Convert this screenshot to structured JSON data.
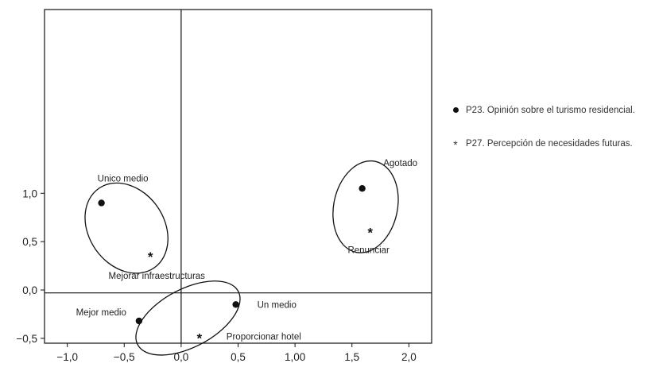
{
  "chart_data": {
    "type": "scatter",
    "title": "",
    "xlabel": "",
    "ylabel": "",
    "xlim": [
      -1.2,
      2.2
    ],
    "ylim": [
      -0.55,
      2.9
    ],
    "xticks": [
      -1.0,
      -0.5,
      0.0,
      0.5,
      1.0,
      1.5,
      2.0
    ],
    "xtick_labels": [
      "−1,0",
      "−0,5",
      "0,0",
      "0,5",
      "1,00",
      "1,5",
      "2,0"
    ],
    "yticks": [
      -0.5,
      0.0,
      0.5,
      1.0
    ],
    "ytick_labels": [
      "−0,5",
      "0,0",
      "0,5",
      "1,0"
    ],
    "reference_lines": {
      "x": 0.0,
      "y": -0.03
    },
    "grid": false,
    "series": [
      {
        "name": "P23. Opinión sobre el turismo residencial.",
        "marker": "dot",
        "points": [
          {
            "label": "Unico medio",
            "x": -0.7,
            "y": 0.9
          },
          {
            "label": "Agotado",
            "x": 1.59,
            "y": 1.05
          },
          {
            "label": "Un medio",
            "x": 0.48,
            "y": -0.15
          },
          {
            "label": "Mejor medio",
            "x": -0.37,
            "y": -0.32
          }
        ]
      },
      {
        "name": "P27. Percepción de necesidades futuras.",
        "marker": "star",
        "points": [
          {
            "label": "Mejorar infraestructuras",
            "x": -0.27,
            "y": 0.37
          },
          {
            "label": "Renunciar",
            "x": 1.66,
            "y": 0.62
          },
          {
            "label": "Proporcionar hotel",
            "x": 0.16,
            "y": -0.47
          }
        ]
      }
    ],
    "groups": [
      {
        "cx": -0.48,
        "cy": 0.64,
        "rx": 0.33,
        "ry": 0.5,
        "rotate_deg": -35
      },
      {
        "cx": 1.62,
        "cy": 0.86,
        "rx": 0.28,
        "ry": 0.48,
        "rotate_deg": 12
      },
      {
        "cx": 0.06,
        "cy": -0.29,
        "rx": 0.5,
        "ry": 0.3,
        "rotate_deg": -28
      }
    ]
  }
}
